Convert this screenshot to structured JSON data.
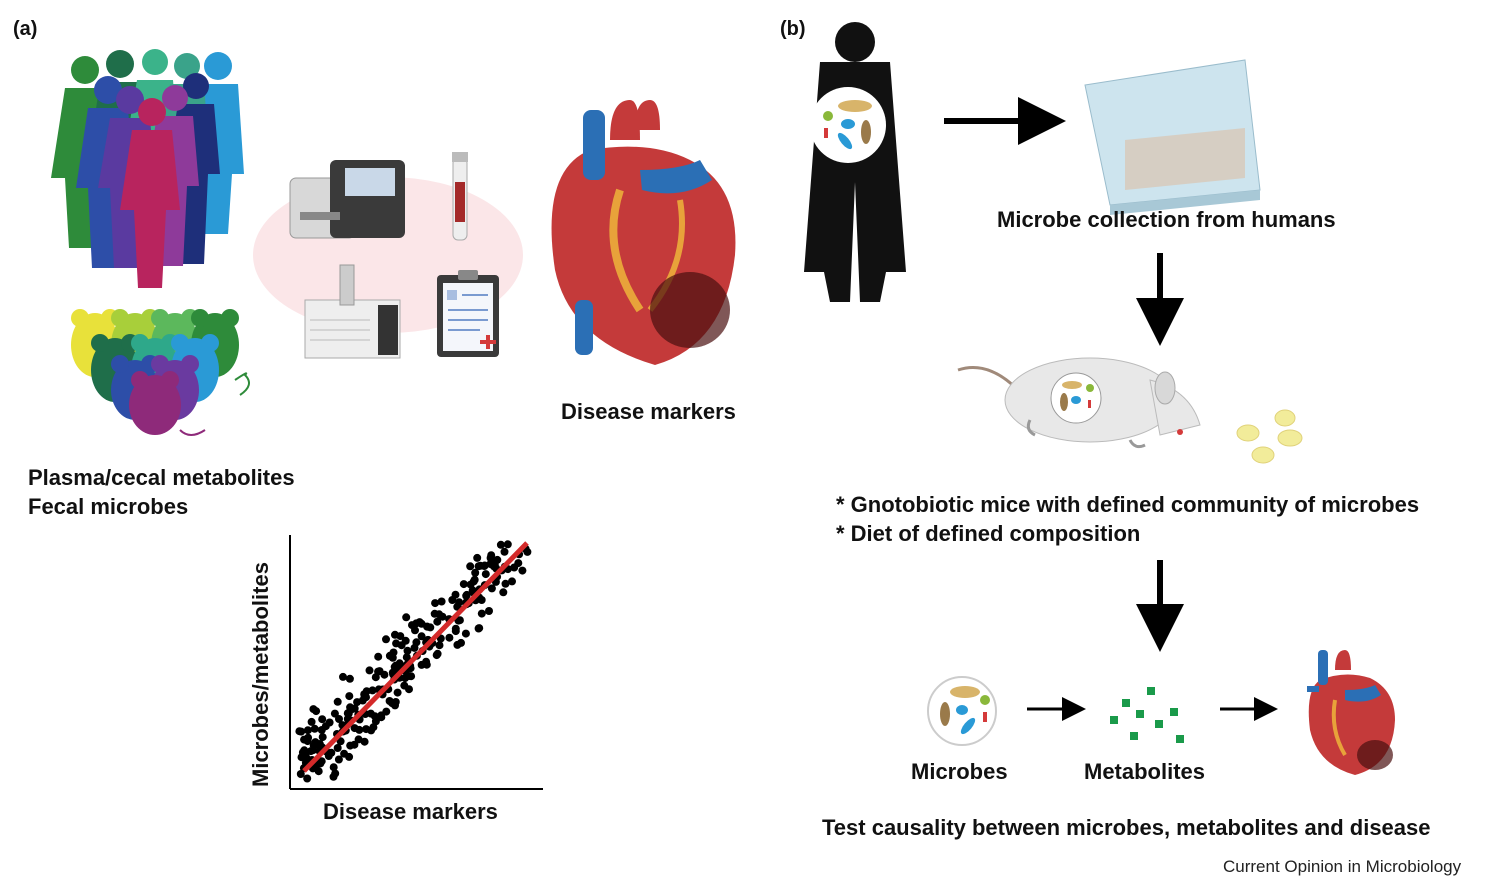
{
  "panel_a": {
    "label": "(a)",
    "population_caption_line1": "Plasma/cecal metabolites",
    "population_caption_line2": "Fecal microbes",
    "heart_caption": "Disease markers",
    "scatter": {
      "xlabel": "Disease markers",
      "ylabel": "Microbes/metabolites"
    }
  },
  "panel_b": {
    "label": "(b)",
    "collection_caption": "Microbe collection from humans",
    "mouse_bullet1": "* Gnotobiotic mice with defined community of microbes",
    "mouse_bullet2": "* Diet of defined composition",
    "chain": {
      "microbes": "Microbes",
      "metabolites": "Metabolites"
    },
    "bottom_caption": "Test causality between microbes, metabolites and disease"
  },
  "footer": "Current Opinion in Microbiology",
  "colors": {
    "regression_line": "#d42a2a",
    "metabolite_dots": "#1a9a4a",
    "arrow": "#000000",
    "heart_red": "#c43a3a",
    "vessel_blue": "#2b6fb5"
  }
}
